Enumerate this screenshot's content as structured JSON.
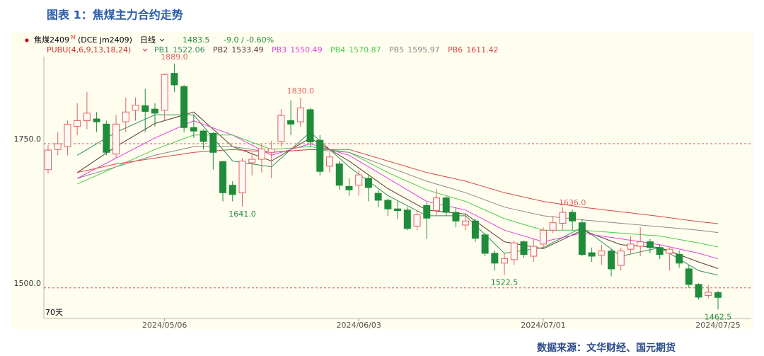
{
  "title": "图表 1：焦煤主力合约走势",
  "source": "数据来源：文华财经、国元期货",
  "chart_data": {
    "type": "candlestick",
    "instrument": "焦煤2409",
    "instrument_mark": "M",
    "code": "(DCE jm2409)",
    "period": "日线",
    "last": 1483.5,
    "change": "-9.0 / -0.60%",
    "indicator": "PUBU(4,6,9,13,18,24)",
    "span_label": "70天",
    "categories": [
      null,
      null,
      null,
      null,
      null,
      null,
      null,
      null,
      null,
      null,
      null,
      null,
      "2024/05/06",
      null,
      null,
      null,
      null,
      null,
      null,
      null,
      null,
      null,
      null,
      null,
      null,
      null,
      null,
      null,
      null,
      null,
      null,
      null,
      "2024/06/03",
      null,
      null,
      null,
      null,
      null,
      null,
      null,
      null,
      null,
      null,
      null,
      null,
      null,
      null,
      null,
      null,
      null,
      null,
      "2024/07/01",
      null,
      null,
      null,
      null,
      null,
      null,
      null,
      null,
      null,
      null,
      null,
      null,
      null,
      null,
      null,
      null,
      null,
      "2024/07/25"
    ],
    "open": [
      1705,
      1740,
      1745,
      1780,
      1790,
      1793,
      1784,
      1732,
      1788,
      1808,
      1816,
      1810,
      1808,
      1872,
      1849,
      1778,
      1772,
      1768,
      1719,
      1678,
      1665,
      1717,
      1723,
      1735,
      1754,
      1790,
      1788,
      1809,
      1756,
      1711,
      1715,
      1676,
      1678,
      1690,
      1664,
      1652,
      1637,
      1635,
      1607,
      1643,
      1634,
      1656,
      1631,
      1609,
      1616,
      1592,
      1560,
      1543,
      1549,
      1580,
      1555,
      1576,
      1600,
      1612,
      1631,
      1613,
      1561,
      1557,
      1564,
      1539,
      1567,
      1572,
      1580,
      1570,
      1560,
      1558,
      1533,
      1506,
      1487,
      1492
    ],
    "high": [
      1748,
      1770,
      1790,
      1820,
      1840,
      1805,
      1790,
      1800,
      1830,
      1830,
      1845,
      1820,
      1872,
      1889,
      1852,
      1800,
      1775,
      1770,
      1720,
      1685,
      1725,
      1735,
      1750,
      1755,
      1810,
      1825,
      1830,
      1812,
      1765,
      1735,
      1720,
      1690,
      1705,
      1695,
      1670,
      1655,
      1650,
      1640,
      1635,
      1648,
      1672,
      1660,
      1640,
      1630,
      1620,
      1595,
      1565,
      1560,
      1582,
      1582,
      1585,
      1605,
      1625,
      1640,
      1636,
      1620,
      1570,
      1575,
      1568,
      1570,
      1590,
      1605,
      1585,
      1575,
      1570,
      1565,
      1540,
      1508,
      1505,
      1495
    ],
    "low": [
      1698,
      1730,
      1730,
      1765,
      1775,
      1770,
      1730,
      1725,
      1770,
      1790,
      1770,
      1780,
      1790,
      1840,
      1770,
      1760,
      1740,
      1705,
      1650,
      1650,
      1641,
      1695,
      1700,
      1690,
      1745,
      1765,
      1780,
      1745,
      1695,
      1700,
      1670,
      1660,
      1660,
      1650,
      1640,
      1625,
      1620,
      1600,
      1600,
      1585,
      1625,
      1625,
      1605,
      1600,
      1580,
      1555,
      1530,
      1522.5,
      1540,
      1552,
      1545,
      1570,
      1595,
      1600,
      1600,
      1555,
      1545,
      1540,
      1520,
      1530,
      1560,
      1555,
      1560,
      1550,
      1530,
      1535,
      1500,
      1480,
      1482,
      1462.5
    ],
    "close": [
      1739,
      1750,
      1784,
      1790,
      1803,
      1788,
      1735,
      1784,
      1805,
      1817,
      1806,
      1803,
      1870,
      1852,
      1778,
      1772,
      1754,
      1735,
      1665,
      1662,
      1720,
      1723,
      1741,
      1741,
      1799,
      1784,
      1812,
      1753,
      1702,
      1727,
      1678,
      1670,
      1696,
      1674,
      1652,
      1637,
      1634,
      1603,
      1627,
      1621,
      1656,
      1631,
      1616,
      1616,
      1586,
      1560,
      1543,
      1551,
      1578,
      1558,
      1572,
      1600,
      1613,
      1631,
      1616,
      1558,
      1555,
      1564,
      1533,
      1564,
      1576,
      1580,
      1570,
      1558,
      1567,
      1543,
      1506,
      1484,
      1492.5,
      1483.5
    ],
    "up_color": "#e06262",
    "down_color": "#1f8c3b",
    "series": [
      {
        "name": "PB1",
        "color": "#2f8f5f",
        "x": [
          3,
          7,
          11,
          15,
          19,
          23,
          27,
          31,
          35,
          39,
          43,
          47,
          51,
          55,
          59,
          63,
          67,
          69
        ],
        "values": [
          1730,
          1770,
          1800,
          1800,
          1720,
          1710,
          1770,
          1710,
          1660,
          1625,
          1625,
          1560,
          1570,
          1605,
          1555,
          1570,
          1530,
          1522.06
        ]
      },
      {
        "name": "PB2",
        "color": "#5a3a30",
        "x": [
          3,
          7,
          11,
          15,
          19,
          23,
          27,
          31,
          35,
          39,
          43,
          47,
          51,
          55,
          59,
          63,
          67,
          69
        ],
        "values": [
          1700,
          1745,
          1785,
          1805,
          1745,
          1720,
          1760,
          1720,
          1672,
          1635,
          1628,
          1580,
          1568,
          1600,
          1575,
          1570,
          1545,
          1533.49
        ]
      },
      {
        "name": "PB3",
        "color": "#e040e0",
        "x": [
          3,
          7,
          11,
          15,
          19,
          23,
          27,
          31,
          35,
          39,
          43,
          47,
          51,
          55,
          59,
          63,
          67,
          69
        ],
        "values": [
          1690,
          1725,
          1760,
          1790,
          1765,
          1730,
          1750,
          1730,
          1690,
          1650,
          1635,
          1600,
          1580,
          1595,
          1585,
          1575,
          1560,
          1550.49
        ]
      },
      {
        "name": "PB4",
        "color": "#4ccc4c",
        "x": [
          3,
          7,
          11,
          15,
          19,
          23,
          27,
          31,
          35,
          39,
          43,
          47,
          51,
          55,
          59,
          63,
          67,
          69
        ],
        "values": [
          1680,
          1710,
          1740,
          1765,
          1765,
          1740,
          1745,
          1735,
          1700,
          1670,
          1650,
          1620,
          1600,
          1600,
          1595,
          1590,
          1578,
          1570.87
        ]
      },
      {
        "name": "PB5",
        "color": "#8a8a8a",
        "x": [
          3,
          7,
          11,
          15,
          19,
          23,
          27,
          31,
          35,
          39,
          43,
          47,
          51,
          55,
          59,
          63,
          67,
          69
        ],
        "values": [
          1690,
          1710,
          1730,
          1745,
          1745,
          1735,
          1740,
          1735,
          1710,
          1685,
          1665,
          1640,
          1625,
          1618,
          1612,
          1606,
          1600,
          1595.97
        ]
      },
      {
        "name": "PB6",
        "color": "#d84848",
        "x": [
          3,
          7,
          11,
          15,
          19,
          23,
          27,
          31,
          35,
          39,
          43,
          47,
          51,
          55,
          59,
          63,
          67,
          69
        ],
        "values": [
          1700,
          1715,
          1725,
          1735,
          1740,
          1735,
          1740,
          1740,
          1720,
          1700,
          1685,
          1665,
          1650,
          1640,
          1632,
          1624,
          1615,
          1611.42
        ]
      }
    ],
    "annotations": [
      {
        "x": 13,
        "y": 1889,
        "label": "1889.0",
        "position": "above",
        "color": "#e06262"
      },
      {
        "x": 26,
        "y": 1830,
        "label": "1830.0",
        "position": "above",
        "color": "#e06262"
      },
      {
        "x": 20,
        "y": 1641,
        "label": "1641.0",
        "position": "below",
        "color": "#1f8c3b"
      },
      {
        "x": 47,
        "y": 1522.5,
        "label": "1522.5",
        "position": "below",
        "color": "#1f8c3b"
      },
      {
        "x": 54,
        "y": 1636,
        "label": "1636.0",
        "position": "above",
        "color": "#e06262"
      },
      {
        "x": 69,
        "y": 1462.5,
        "label": "1462.5",
        "position": "below",
        "color": "#1f8c3b"
      }
    ],
    "ylim": [
      1447,
      1901
    ],
    "yticks": [
      {
        "value": 1750,
        "label": "1750.0"
      },
      {
        "value": 1500,
        "label": "1500.0"
      }
    ],
    "grid": true,
    "grid_color": "#e05050"
  }
}
